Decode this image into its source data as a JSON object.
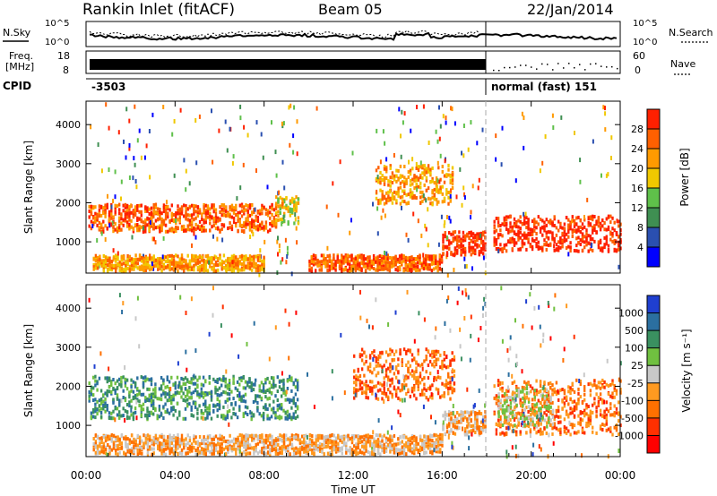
{
  "header": {
    "station": "Rankin Inlet (fitACF)",
    "beam": "Beam 05",
    "date": "22/Jan/2014"
  },
  "top_panels": {
    "nsky_label": "N.Sky",
    "nsky_scale_top": "10^5",
    "nsky_scale_bottom": "10^0",
    "nsearch_scale_top": "10^5",
    "nsearch_scale_bottom": "10^0",
    "nsearch_label": "N.Search",
    "freq_label": "Freq.",
    "freq_unit": "[MHz]",
    "freq_top": "18",
    "freq_bottom": "8",
    "nave_top": "60",
    "nave_bottom": "0",
    "nave_label": "Nave",
    "cpid_label": "CPID",
    "cpid_value": "-3503",
    "mode_value": "normal (fast) 151"
  },
  "colors": {
    "power_scale": [
      "#0000ff",
      "#2a4fb0",
      "#3f8f52",
      "#5fc04a",
      "#f0c800",
      "#ff9a00",
      "#ff6000",
      "#ff2000"
    ],
    "velocity_scale": [
      "#1f3fd0",
      "#2b6fa0",
      "#3a9060",
      "#70c040",
      "#c8c8c8",
      "#ff9a20",
      "#ff7000",
      "#ff3000",
      "#ff0000"
    ]
  },
  "chart_data": [
    {
      "type": "heatmap",
      "name": "power",
      "xlabel": "",
      "ylabel": "Slant Range [km]",
      "ylim": [
        200,
        4600
      ],
      "yticks": [
        "1000",
        "2000",
        "3000",
        "4000"
      ],
      "colorbar_label": "Power [dB]",
      "colorbar_ticks": [
        "4",
        "8",
        "12",
        "16",
        "20",
        "24",
        "28"
      ],
      "regions": [
        {
          "t0": 0.1,
          "t1": 3.0,
          "r0": 1300,
          "r1": 2000,
          "level": 6
        },
        {
          "t0": 3.0,
          "t1": 8.5,
          "r0": 1300,
          "r1": 2000,
          "level": 6
        },
        {
          "t0": 8.5,
          "t1": 9.5,
          "r0": 1500,
          "r1": 2200,
          "level": 4
        },
        {
          "t0": 13.0,
          "t1": 16.5,
          "r0": 2000,
          "r1": 3000,
          "level": 5
        },
        {
          "t0": 16.0,
          "t1": 18.0,
          "r0": 700,
          "r1": 1300,
          "level": 7
        },
        {
          "t0": 18.3,
          "t1": 24.0,
          "r0": 800,
          "r1": 1700,
          "level": 7
        },
        {
          "t0": 10.0,
          "t1": 16.0,
          "r0": 300,
          "r1": 700,
          "level": 6
        },
        {
          "t0": 0.3,
          "t1": 8.0,
          "r0": 300,
          "r1": 700,
          "level": 5
        }
      ]
    },
    {
      "type": "heatmap",
      "name": "velocity",
      "xlabel": "Time UT",
      "ylabel": "Slant Range [km]",
      "ylim": [
        200,
        4600
      ],
      "yticks": [
        "1000",
        "2000",
        "3000",
        "4000"
      ],
      "xticks": [
        "00:00",
        "04:00",
        "08:00",
        "12:00",
        "16:00",
        "20:00",
        "00:00"
      ],
      "colorbar_label": "Velocity [m s⁻¹]",
      "colorbar_ticks": [
        "1000",
        "500",
        "100",
        "25",
        "-25",
        "-100",
        "-500",
        "-1000"
      ],
      "regions": [
        {
          "t0": 0.1,
          "t1": 9.5,
          "r0": 1200,
          "r1": 2300,
          "level": 2
        },
        {
          "t0": 12.0,
          "t1": 16.5,
          "r0": 1700,
          "r1": 3000,
          "level": 6
        },
        {
          "t0": 16.0,
          "t1": 18.0,
          "r0": 800,
          "r1": 1400,
          "level": 5
        },
        {
          "t0": 18.3,
          "t1": 24.0,
          "r0": 800,
          "r1": 2200,
          "level": 6
        },
        {
          "t0": 18.5,
          "t1": 21.0,
          "r0": 1000,
          "r1": 2000,
          "level": 4
        },
        {
          "t0": 0.3,
          "t1": 16.0,
          "r0": 300,
          "r1": 800,
          "level": 5
        }
      ]
    }
  ]
}
